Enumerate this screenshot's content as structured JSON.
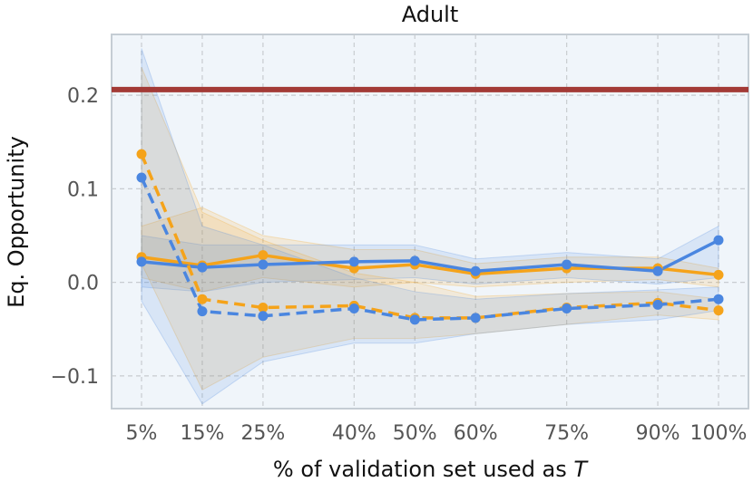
{
  "chart_data": {
    "type": "line",
    "title": "Adult",
    "xlabel": "% of validation set used as T",
    "ylabel": "Eq. Opportunity",
    "x": [
      5,
      15,
      25,
      40,
      50,
      60,
      75,
      90,
      100
    ],
    "x_tick_labels": [
      "5%",
      "15%",
      "25%",
      "40%",
      "50%",
      "60%",
      "75%",
      "90%",
      "100%"
    ],
    "ylim": [
      -0.135,
      0.265
    ],
    "y_ticks": [
      -0.1,
      0.0,
      0.1,
      0.2
    ],
    "y_tick_labels": [
      "−0.1",
      "0.0",
      "0.1",
      "0.2"
    ],
    "grid": true,
    "reference_line": {
      "y": 0.206,
      "color": "#a33a36"
    },
    "series": [
      {
        "color": "#f5a31a",
        "style": "solid",
        "values": [
          0.027,
          0.018,
          0.029,
          0.015,
          0.019,
          0.009,
          0.015,
          0.015,
          0.008
        ],
        "band_lower": [
          0.005,
          -0.01,
          0.005,
          -0.005,
          0.0,
          -0.005,
          0.0,
          0.003,
          -0.005
        ],
        "band_upper": [
          0.06,
          0.08,
          0.05,
          0.035,
          0.035,
          0.02,
          0.027,
          0.027,
          0.015
        ]
      },
      {
        "color": "#4a86e0",
        "style": "solid",
        "values": [
          0.022,
          0.016,
          0.019,
          0.022,
          0.023,
          0.012,
          0.019,
          0.012,
          0.045
        ],
        "band_lower": [
          -0.005,
          -0.01,
          0.0,
          0.003,
          0.005,
          -0.002,
          0.005,
          -0.002,
          0.005
        ],
        "band_upper": [
          0.05,
          0.04,
          0.04,
          0.04,
          0.04,
          0.025,
          0.032,
          0.025,
          0.06
        ]
      },
      {
        "color": "#f5a31a",
        "style": "dashed",
        "values": [
          0.137,
          -0.018,
          -0.027,
          -0.025,
          -0.038,
          -0.038,
          -0.027,
          -0.022,
          -0.03
        ],
        "band_lower": [
          0.02,
          -0.115,
          -0.08,
          -0.06,
          -0.06,
          -0.055,
          -0.045,
          -0.035,
          -0.04
        ],
        "band_upper": [
          0.23,
          0.075,
          0.045,
          0.01,
          0.0,
          -0.015,
          -0.012,
          -0.01,
          -0.018
        ]
      },
      {
        "color": "#4a86e0",
        "style": "dashed",
        "values": [
          0.112,
          -0.031,
          -0.036,
          -0.028,
          -0.04,
          -0.038,
          -0.028,
          -0.024,
          -0.018
        ],
        "band_lower": [
          -0.02,
          -0.13,
          -0.085,
          -0.065,
          -0.065,
          -0.055,
          -0.045,
          -0.04,
          -0.03
        ],
        "band_upper": [
          0.25,
          0.06,
          0.04,
          0.005,
          -0.01,
          -0.018,
          -0.012,
          -0.008,
          -0.005
        ]
      }
    ]
  }
}
